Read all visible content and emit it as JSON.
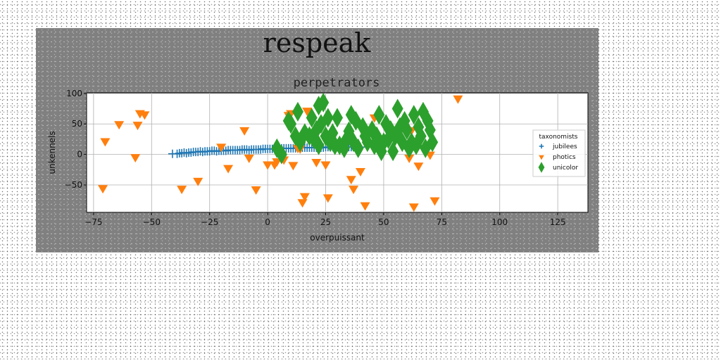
{
  "figure": {
    "suptitle": "respeak",
    "background": "#808080"
  },
  "chart_data": {
    "type": "scatter",
    "title": "perpetrators",
    "xlabel": "overpuissant",
    "ylabel": "unkennels",
    "xlim": [
      -78,
      138
    ],
    "ylim": [
      -95,
      101
    ],
    "xticks": [
      -75,
      -50,
      -25,
      0,
      25,
      50,
      75,
      100,
      125
    ],
    "yticks": [
      -50,
      0,
      50,
      100
    ],
    "grid": true,
    "legend": {
      "title": "taxonomists",
      "placement": "right"
    },
    "series": [
      {
        "name": "jubilees",
        "marker": "plus",
        "color": "#1f77b4",
        "x": [
          -41,
          -39,
          -38,
          -37,
          -36,
          -35,
          -34,
          -33,
          -32,
          -31,
          -30,
          -29,
          -28,
          -27,
          -26,
          -25,
          -24,
          -23,
          -22,
          -21,
          -20,
          -19,
          -18,
          -17,
          -16,
          -15,
          -14,
          -13,
          -12,
          -11,
          -10,
          -9,
          -8,
          -7,
          -6,
          -5,
          -4,
          -3,
          -2,
          -1,
          0,
          1,
          2,
          3,
          4,
          5,
          6,
          7,
          8,
          9,
          10,
          11,
          12,
          13,
          14,
          15,
          16,
          17,
          18,
          19,
          20,
          21,
          22,
          23,
          24,
          25,
          26,
          27,
          28,
          29,
          30,
          31,
          32,
          33,
          34,
          35,
          36,
          37,
          38,
          39,
          40
        ],
        "y": [
          1.0,
          1.0,
          2.0,
          2.0,
          3.0,
          2.0,
          3.0,
          3.0,
          4.0,
          4.0,
          4.0,
          5.0,
          4.0,
          5.0,
          5.0,
          5.0,
          6.0,
          6.0,
          5.0,
          6.0,
          6.0,
          6.0,
          6.0,
          7.0,
          7.0,
          7.0,
          7.0,
          7.0,
          7.0,
          8.0,
          8.0,
          8.0,
          7.0,
          8.0,
          8.0,
          8.0,
          8.0,
          8.0,
          9.0,
          9.0,
          9.0,
          9.0,
          9.0,
          9.0,
          9.0,
          9.0,
          10.0,
          10.0,
          10.0,
          10.0,
          10.0,
          10.0,
          10.0,
          11.0,
          11.0,
          11.0,
          11.0,
          11.0,
          11.0,
          11.0,
          11.0,
          11.0,
          11.0,
          11.0,
          11.0,
          12.0,
          12.0,
          12.0,
          12.0,
          12.0,
          12.0,
          12.0,
          12.0,
          12.0,
          12.0,
          12.0,
          12.0,
          12.0,
          12.0,
          12.0,
          12.0
        ]
      },
      {
        "name": "photics",
        "marker": "triangle-down",
        "color": "#ff7f0e",
        "x": [
          -70,
          -64,
          -56,
          -55,
          -53,
          -57,
          -71,
          -37,
          -30,
          -20,
          -17,
          -10,
          -5,
          -8,
          0,
          3,
          4,
          7,
          9,
          10,
          11,
          13,
          14,
          15,
          16,
          17,
          21,
          25,
          26,
          36,
          37,
          40,
          42,
          46,
          61,
          62,
          63,
          65,
          70,
          72,
          82
        ],
        "y": [
          22,
          50,
          49,
          68,
          66,
          -4,
          -55,
          -56,
          -43,
          13,
          -22,
          40,
          -57,
          -5,
          -16,
          -16,
          -11,
          -8,
          65,
          68,
          -17,
          11,
          10,
          -78,
          -68,
          72,
          -12,
          -16,
          -70,
          -40,
          -56,
          -27,
          -83,
          61,
          -5,
          40,
          -85,
          -18,
          0,
          -75,
          92
        ]
      },
      {
        "name": "unicolor",
        "marker": "diamond",
        "color": "#2ca02c",
        "x": [
          4,
          6,
          9,
          10,
          12,
          13,
          14,
          16,
          18,
          19,
          20,
          21,
          22,
          22,
          23,
          24,
          25,
          26,
          27,
          28,
          29,
          30,
          31,
          33,
          34,
          35,
          36,
          37,
          38,
          39,
          41,
          42,
          43,
          45,
          46,
          47,
          48,
          49,
          50,
          51,
          52,
          53,
          54,
          55,
          56,
          57,
          58,
          59,
          60,
          61,
          62,
          63,
          64,
          65,
          66,
          67,
          68,
          69,
          70,
          71
        ],
        "y": [
          10,
          0,
          55,
          50,
          30,
          70,
          20,
          35,
          30,
          60,
          25,
          40,
          15,
          80,
          50,
          85,
          30,
          60,
          20,
          35,
          15,
          60,
          15,
          10,
          25,
          38,
          65,
          20,
          55,
          10,
          45,
          30,
          20,
          40,
          15,
          30,
          65,
          5,
          20,
          50,
          25,
          40,
          5,
          30,
          75,
          45,
          20,
          55,
          40,
          10,
          20,
          65,
          15,
          45,
          30,
          70,
          10,
          55,
          40,
          20
        ]
      }
    ]
  }
}
